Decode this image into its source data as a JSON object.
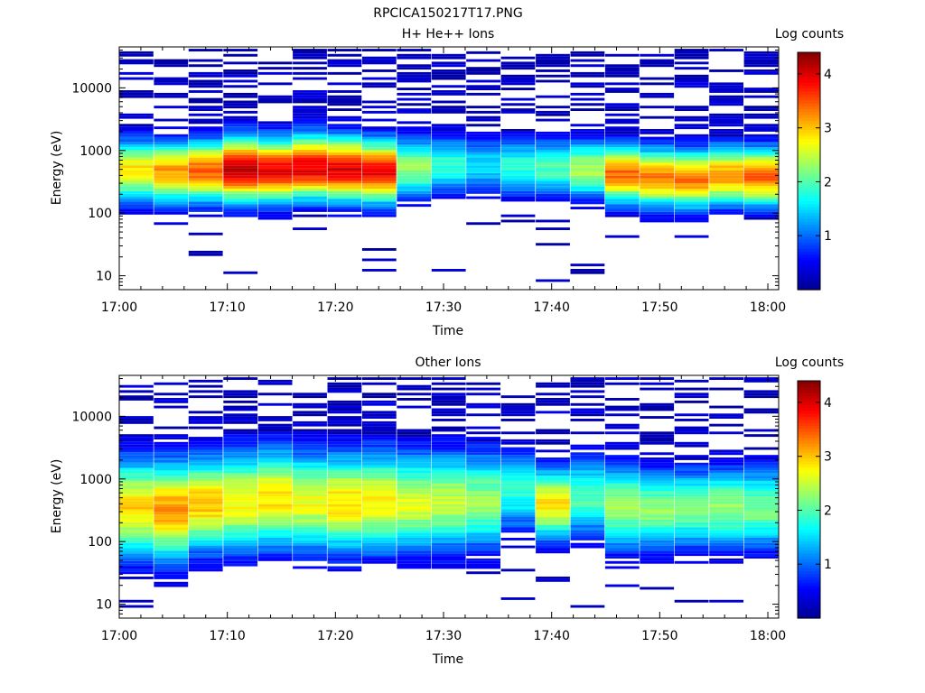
{
  "title": "RPCICA150217T17.PNG",
  "colormap": [
    "#00008f",
    "#0000ff",
    "#0080ff",
    "#00ffff",
    "#80ff80",
    "#ffff00",
    "#ff8000",
    "#ff0000",
    "#800000"
  ],
  "chart_data": [
    {
      "type": "heatmap",
      "title": "H+ He++ Ions",
      "xlabel": "Time",
      "ylabel": "Energy (eV)",
      "yscale": "log",
      "ylim": [
        6,
        45000
      ],
      "xlim": [
        "17:00",
        "18:01"
      ],
      "xticks": [
        "17:00",
        "17:10",
        "17:20",
        "17:30",
        "17:40",
        "17:50",
        "18:00"
      ],
      "yticks": [
        "10",
        "100",
        "1000",
        "10000"
      ],
      "colorbar": {
        "label": "Log counts",
        "range": [
          0,
          4.4
        ],
        "ticks": [
          "1",
          "2",
          "3",
          "4"
        ]
      },
      "time_bins": [
        "17:01",
        "17:04",
        "17:08",
        "17:11",
        "17:14",
        "17:17",
        "17:20",
        "17:24",
        "17:27",
        "17:30",
        "17:33",
        "17:36",
        "17:40",
        "17:43",
        "17:46",
        "17:49",
        "17:53",
        "17:56",
        "17:59"
      ],
      "profile": [
        {
          "peak_ev": 450,
          "peak_log": 2.9,
          "width_dec": 0.34
        },
        {
          "peak_ev": 430,
          "peak_log": 3.2,
          "width_dec": 0.34
        },
        {
          "peak_ev": 450,
          "peak_log": 3.4,
          "width_dec": 0.34
        },
        {
          "peak_ev": 480,
          "peak_log": 4.1,
          "width_dec": 0.36
        },
        {
          "peak_ev": 460,
          "peak_log": 3.9,
          "width_dec": 0.36
        },
        {
          "peak_ev": 520,
          "peak_log": 4.0,
          "width_dec": 0.36
        },
        {
          "peak_ev": 480,
          "peak_log": 4.0,
          "width_dec": 0.36
        },
        {
          "peak_ev": 440,
          "peak_log": 3.9,
          "width_dec": 0.35
        },
        {
          "peak_ev": 500,
          "peak_log": 2.3,
          "width_dec": 0.34
        },
        {
          "peak_ev": 560,
          "peak_log": 1.9,
          "width_dec": 0.32
        },
        {
          "peak_ev": 550,
          "peak_log": 1.6,
          "width_dec": 0.3
        },
        {
          "peak_ev": 520,
          "peak_log": 1.8,
          "width_dec": 0.32
        },
        {
          "peak_ev": 520,
          "peak_log": 2.0,
          "width_dec": 0.32
        },
        {
          "peak_ev": 480,
          "peak_log": 2.4,
          "width_dec": 0.33
        },
        {
          "peak_ev": 400,
          "peak_log": 3.4,
          "width_dec": 0.33
        },
        {
          "peak_ev": 350,
          "peak_log": 3.3,
          "width_dec": 0.33
        },
        {
          "peak_ev": 330,
          "peak_log": 3.3,
          "width_dec": 0.33
        },
        {
          "peak_ev": 380,
          "peak_log": 3.2,
          "width_dec": 0.33
        },
        {
          "peak_ev": 360,
          "peak_log": 3.4,
          "width_dec": 0.33
        }
      ]
    },
    {
      "type": "heatmap",
      "title": "Other Ions",
      "xlabel": "Time",
      "ylabel": "Energy (eV)",
      "yscale": "log",
      "ylim": [
        6,
        45000
      ],
      "xlim": [
        "17:00",
        "18:01"
      ],
      "xticks": [
        "17:00",
        "17:10",
        "17:20",
        "17:30",
        "17:40",
        "17:50",
        "18:00"
      ],
      "yticks": [
        "10",
        "100",
        "1000",
        "10000"
      ],
      "colorbar": {
        "label": "Log counts",
        "range": [
          0,
          4.4
        ],
        "ticks": [
          "1",
          "2",
          "3",
          "4"
        ]
      },
      "time_bins": [
        "17:01",
        "17:04",
        "17:08",
        "17:11",
        "17:14",
        "17:17",
        "17:20",
        "17:24",
        "17:27",
        "17:30",
        "17:33",
        "17:36",
        "17:40",
        "17:43",
        "17:46",
        "17:49",
        "17:53",
        "17:56",
        "17:59"
      ],
      "profile": [
        {
          "peak_ev": 330,
          "peak_log": 2.9,
          "width_dec": 0.55
        },
        {
          "peak_ev": 300,
          "peak_log": 3.2,
          "width_dec": 0.55
        },
        {
          "peak_ev": 380,
          "peak_log": 3.0,
          "width_dec": 0.52
        },
        {
          "peak_ev": 420,
          "peak_log": 2.8,
          "width_dec": 0.55
        },
        {
          "peak_ev": 480,
          "peak_log": 2.9,
          "width_dec": 0.55
        },
        {
          "peak_ev": 420,
          "peak_log": 2.7,
          "width_dec": 0.55
        },
        {
          "peak_ev": 400,
          "peak_log": 2.9,
          "width_dec": 0.55
        },
        {
          "peak_ev": 420,
          "peak_log": 2.8,
          "width_dec": 0.55
        },
        {
          "peak_ev": 400,
          "peak_log": 2.6,
          "width_dec": 0.55
        },
        {
          "peak_ev": 420,
          "peak_log": 2.5,
          "width_dec": 0.55
        },
        {
          "peak_ev": 440,
          "peak_log": 2.3,
          "width_dec": 0.55
        },
        {
          "peak_ev": 600,
          "peak_log": 1.8,
          "width_dec": 0.45
        },
        {
          "peak_ev": 380,
          "peak_log": 2.9,
          "width_dec": 0.4
        },
        {
          "peak_ev": 500,
          "peak_log": 2.0,
          "width_dec": 0.45
        },
        {
          "peak_ev": 350,
          "peak_log": 2.4,
          "width_dec": 0.48
        },
        {
          "peak_ev": 300,
          "peak_log": 2.3,
          "width_dec": 0.45
        },
        {
          "peak_ev": 320,
          "peak_log": 2.2,
          "width_dec": 0.45
        },
        {
          "peak_ev": 330,
          "peak_log": 2.3,
          "width_dec": 0.45
        },
        {
          "peak_ev": 330,
          "peak_log": 2.2,
          "width_dec": 0.45
        }
      ]
    }
  ]
}
